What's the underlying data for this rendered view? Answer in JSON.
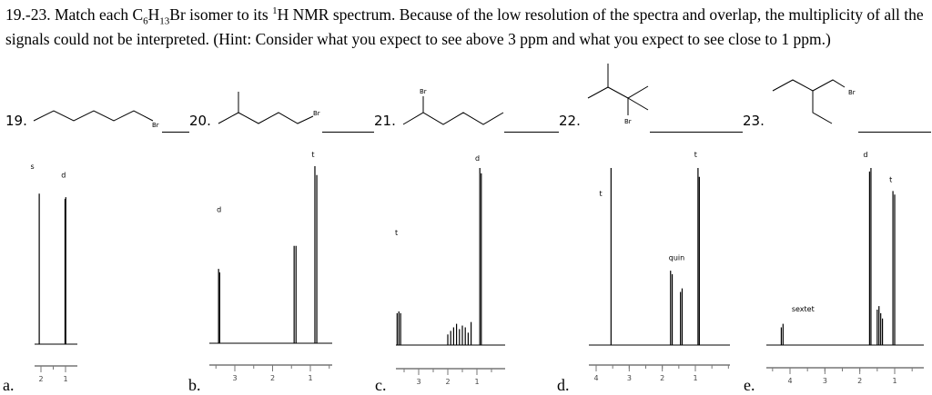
{
  "question": {
    "text_parts": [
      "19.-23. Match each C",
      "6",
      "H",
      "13",
      "Br isomer to its ",
      "1",
      "H NMR spectrum.  Because of the low resolution of the spectra and overlap, the multiplicity of all the signals could not be interpreted.  (Hint: Consider what you expect to see above 3 ppm and what you expect to see close to 1 ppm.)"
    ]
  },
  "compounds": [
    {
      "number": "19.",
      "substituent": "Br"
    },
    {
      "number": "20.",
      "substituent": "Br"
    },
    {
      "number": "21.",
      "substituent": "Br"
    },
    {
      "number": "22.",
      "substituent": "Br"
    },
    {
      "number": "23.",
      "substituent": "Br"
    }
  ],
  "spectra": [
    {
      "letter": "a.",
      "ticks": [
        2,
        1
      ],
      "peaks": [
        {
          "ppm": 2.07,
          "h": 0.85
        },
        {
          "ppm": 1.02,
          "h": 0.82
        },
        {
          "ppm": 0.99,
          "h": 0.83
        }
      ],
      "labels": [
        {
          "text": "s",
          "ppm": 2.35,
          "h": 0.97
        },
        {
          "text": "d",
          "ppm": 1.1,
          "h": 0.92
        }
      ]
    },
    {
      "letter": "b.",
      "ticks": [
        3,
        2,
        1
      ],
      "peaks": [
        {
          "ppm": 3.43,
          "h": 0.42
        },
        {
          "ppm": 3.4,
          "h": 0.4
        },
        {
          "ppm": 1.43,
          "h": 0.55
        },
        {
          "ppm": 1.38,
          "h": 0.55
        },
        {
          "ppm": 0.88,
          "h": 1.0
        },
        {
          "ppm": 0.83,
          "h": 0.95
        }
      ],
      "labels": [
        {
          "text": "d",
          "ppm": 3.43,
          "h": 0.72
        },
        {
          "text": "t",
          "ppm": 0.92,
          "h": 1.03
        }
      ]
    },
    {
      "letter": "c.",
      "ticks": [
        3,
        2,
        1
      ],
      "peaks": [
        {
          "ppm": 3.74,
          "h": 0.18
        },
        {
          "ppm": 3.68,
          "h": 0.19
        },
        {
          "ppm": 3.62,
          "h": 0.18
        },
        {
          "ppm": 2.0,
          "h": 0.06
        },
        {
          "ppm": 1.9,
          "h": 0.08
        },
        {
          "ppm": 1.8,
          "h": 0.1
        },
        {
          "ppm": 1.7,
          "h": 0.12
        },
        {
          "ppm": 1.6,
          "h": 0.09
        },
        {
          "ppm": 1.5,
          "h": 0.11
        },
        {
          "ppm": 1.4,
          "h": 0.1
        },
        {
          "ppm": 1.3,
          "h": 0.07
        },
        {
          "ppm": 1.2,
          "h": 0.13
        },
        {
          "ppm": 0.9,
          "h": 1.0
        },
        {
          "ppm": 0.85,
          "h": 0.97
        }
      ],
      "labels": [
        {
          "text": "t",
          "ppm": 3.75,
          "h": 0.6
        },
        {
          "text": "d",
          "ppm": 1.0,
          "h": 1.02
        }
      ]
    },
    {
      "letter": "d.",
      "ticks": [
        4,
        3,
        2,
        1
      ],
      "peaks": [
        {
          "ppm": 3.55,
          "h": 1.0
        },
        {
          "ppm": 1.75,
          "h": 0.42
        },
        {
          "ppm": 1.7,
          "h": 0.4
        },
        {
          "ppm": 1.45,
          "h": 0.3
        },
        {
          "ppm": 1.4,
          "h": 0.32
        },
        {
          "ppm": 0.92,
          "h": 1.0
        },
        {
          "ppm": 0.88,
          "h": 0.95
        }
      ],
      "labels": [
        {
          "text": "t",
          "ppm": 3.85,
          "h": 0.82
        },
        {
          "text": "quin",
          "ppm": 1.75,
          "h": 0.46
        },
        {
          "text": "t",
          "ppm": 0.98,
          "h": 1.04
        }
      ]
    },
    {
      "letter": "e.",
      "ticks": [
        4,
        3,
        2,
        1
      ],
      "peaks": [
        {
          "ppm": 4.25,
          "h": 0.1
        },
        {
          "ppm": 4.2,
          "h": 0.12
        },
        {
          "ppm": 1.72,
          "h": 0.98
        },
        {
          "ppm": 1.68,
          "h": 1.0
        },
        {
          "ppm": 1.5,
          "h": 0.2
        },
        {
          "ppm": 1.45,
          "h": 0.22
        },
        {
          "ppm": 1.4,
          "h": 0.18
        },
        {
          "ppm": 1.35,
          "h": 0.15
        },
        {
          "ppm": 1.05,
          "h": 0.87
        },
        {
          "ppm": 1.0,
          "h": 0.85
        }
      ],
      "labels": [
        {
          "text": "sextet",
          "ppm": 3.9,
          "h": 0.17
        },
        {
          "text": "d",
          "ppm": 1.85,
          "h": 1.04
        },
        {
          "text": "t",
          "ppm": 1.1,
          "h": 0.9
        }
      ]
    }
  ]
}
